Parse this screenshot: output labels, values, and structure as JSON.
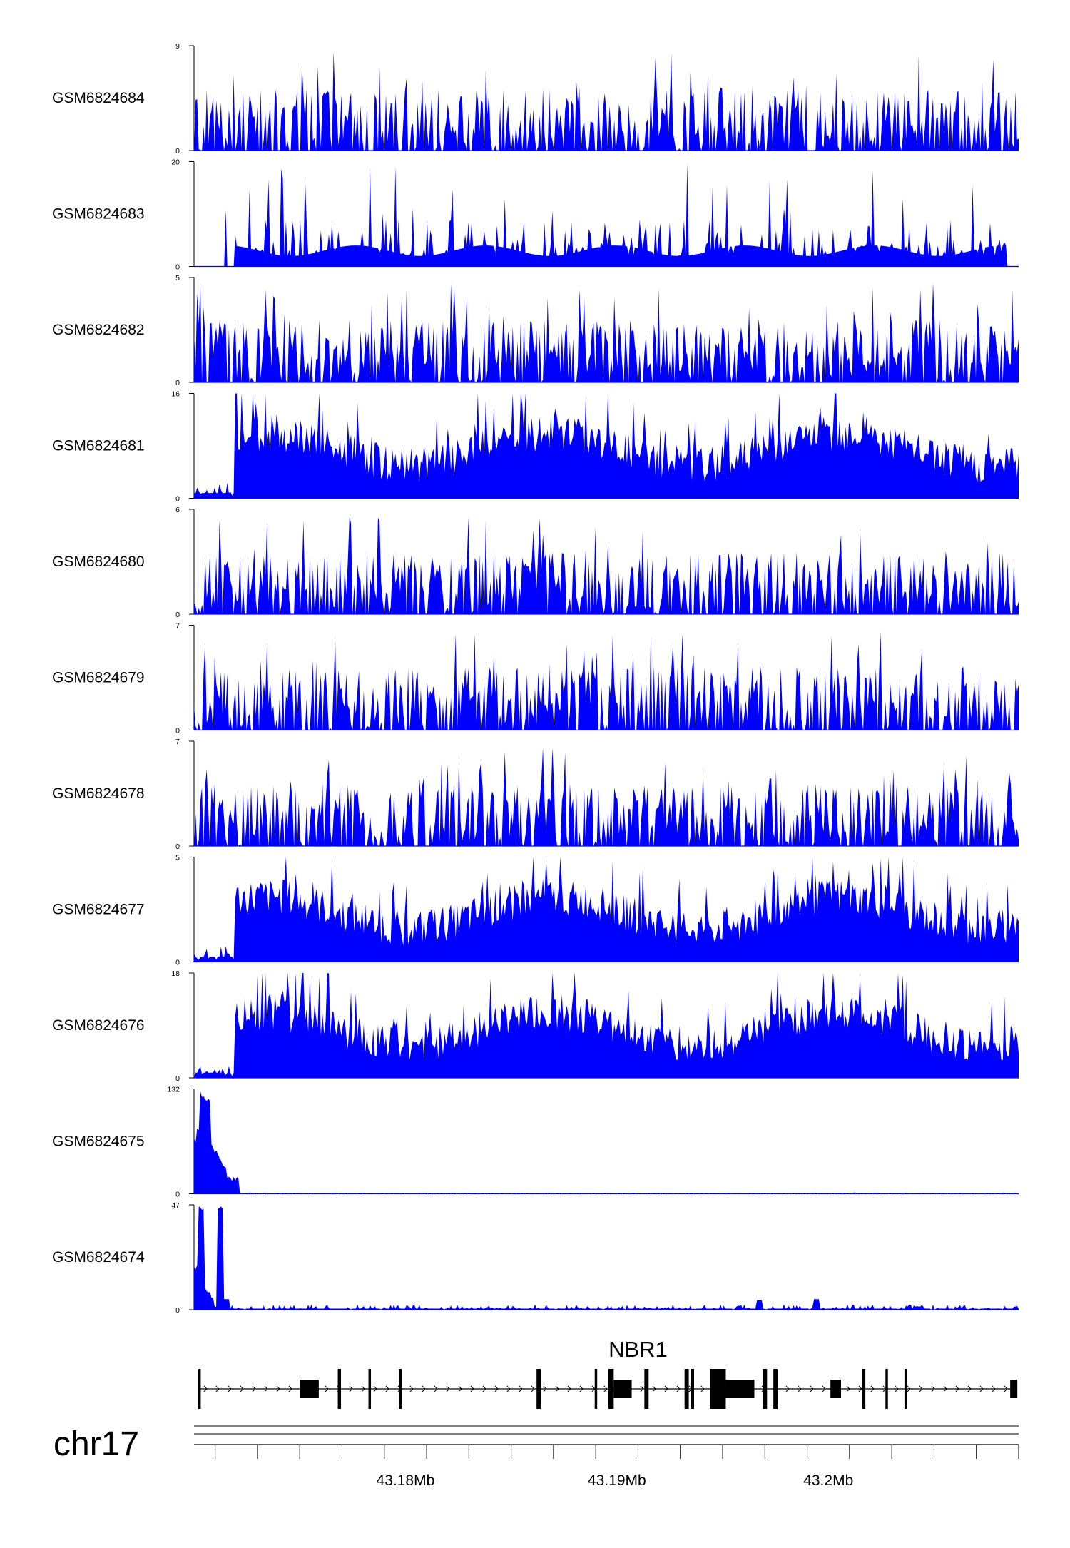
{
  "chart_data": {
    "type": "area",
    "title": "",
    "fill_color": "#0000ff",
    "x_range": [
      43170000,
      43209000
    ],
    "x_ticks": [
      43180000,
      43190000,
      43200000
    ],
    "x_tick_labels": [
      "43.18Mb",
      "43.19Mb",
      "43.2Mb"
    ],
    "chromosome": "chr17",
    "gene": {
      "name": "NBR1",
      "strand": "+",
      "start": 43170200,
      "end": 43208900,
      "exons": [
        [
          43170200,
          43170300,
          "thin"
        ],
        [
          43175000,
          43175900,
          "thick"
        ],
        [
          43176800,
          43176950,
          "thin"
        ],
        [
          43178250,
          43178350,
          "thin"
        ],
        [
          43179700,
          43179800,
          "thin"
        ],
        [
          43186200,
          43186400,
          "thin"
        ],
        [
          43188950,
          43189050,
          "thin"
        ],
        [
          43189600,
          43189850,
          "thin"
        ],
        [
          43189850,
          43190700,
          "thick"
        ],
        [
          43191300,
          43191500,
          "thin"
        ],
        [
          43193200,
          43193400,
          "thin"
        ],
        [
          43193500,
          43193650,
          "thin"
        ],
        [
          43194400,
          43195150,
          "thin"
        ],
        [
          43195150,
          43196500,
          "thick"
        ],
        [
          43196900,
          43197100,
          "thin"
        ],
        [
          43197400,
          43197600,
          "thin"
        ],
        [
          43200100,
          43200600,
          "thick"
        ],
        [
          43201600,
          43201750,
          "thin"
        ],
        [
          43202700,
          43202800,
          "thin"
        ],
        [
          43203600,
          43203700,
          "thin"
        ],
        [
          43208600,
          43208900,
          "thick"
        ]
      ]
    },
    "series": [
      {
        "name": "GSM6824684",
        "ymax": 9,
        "seed": 84,
        "mode": "spiky",
        "density": 0.72
      },
      {
        "name": "GSM6824683",
        "ymax": 20,
        "seed": 83,
        "mode": "sparse",
        "density": 0.28
      },
      {
        "name": "GSM6824682",
        "ymax": 5,
        "seed": 82,
        "mode": "spiky",
        "density": 0.85
      },
      {
        "name": "GSM6824681",
        "ymax": 16,
        "seed": 81,
        "mode": "dense",
        "density": 1.0
      },
      {
        "name": "GSM6824680",
        "ymax": 6,
        "seed": 80,
        "mode": "spiky",
        "density": 0.8
      },
      {
        "name": "GSM6824679",
        "ymax": 7,
        "seed": 79,
        "mode": "spiky",
        "density": 0.8
      },
      {
        "name": "GSM6824678",
        "ymax": 7,
        "seed": 78,
        "mode": "spiky",
        "density": 0.8
      },
      {
        "name": "GSM6824677",
        "ymax": 5,
        "seed": 77,
        "mode": "dense",
        "density": 0.95
      },
      {
        "name": "GSM6824676",
        "ymax": 18,
        "seed": 76,
        "mode": "dense",
        "density": 1.0
      },
      {
        "name": "GSM6824675",
        "ymax": 132,
        "seed": 75,
        "mode": "peak_start",
        "density": 1.0
      },
      {
        "name": "GSM6824674",
        "ymax": 47,
        "seed": 74,
        "mode": "peak_double",
        "density": 1.0
      }
    ]
  }
}
